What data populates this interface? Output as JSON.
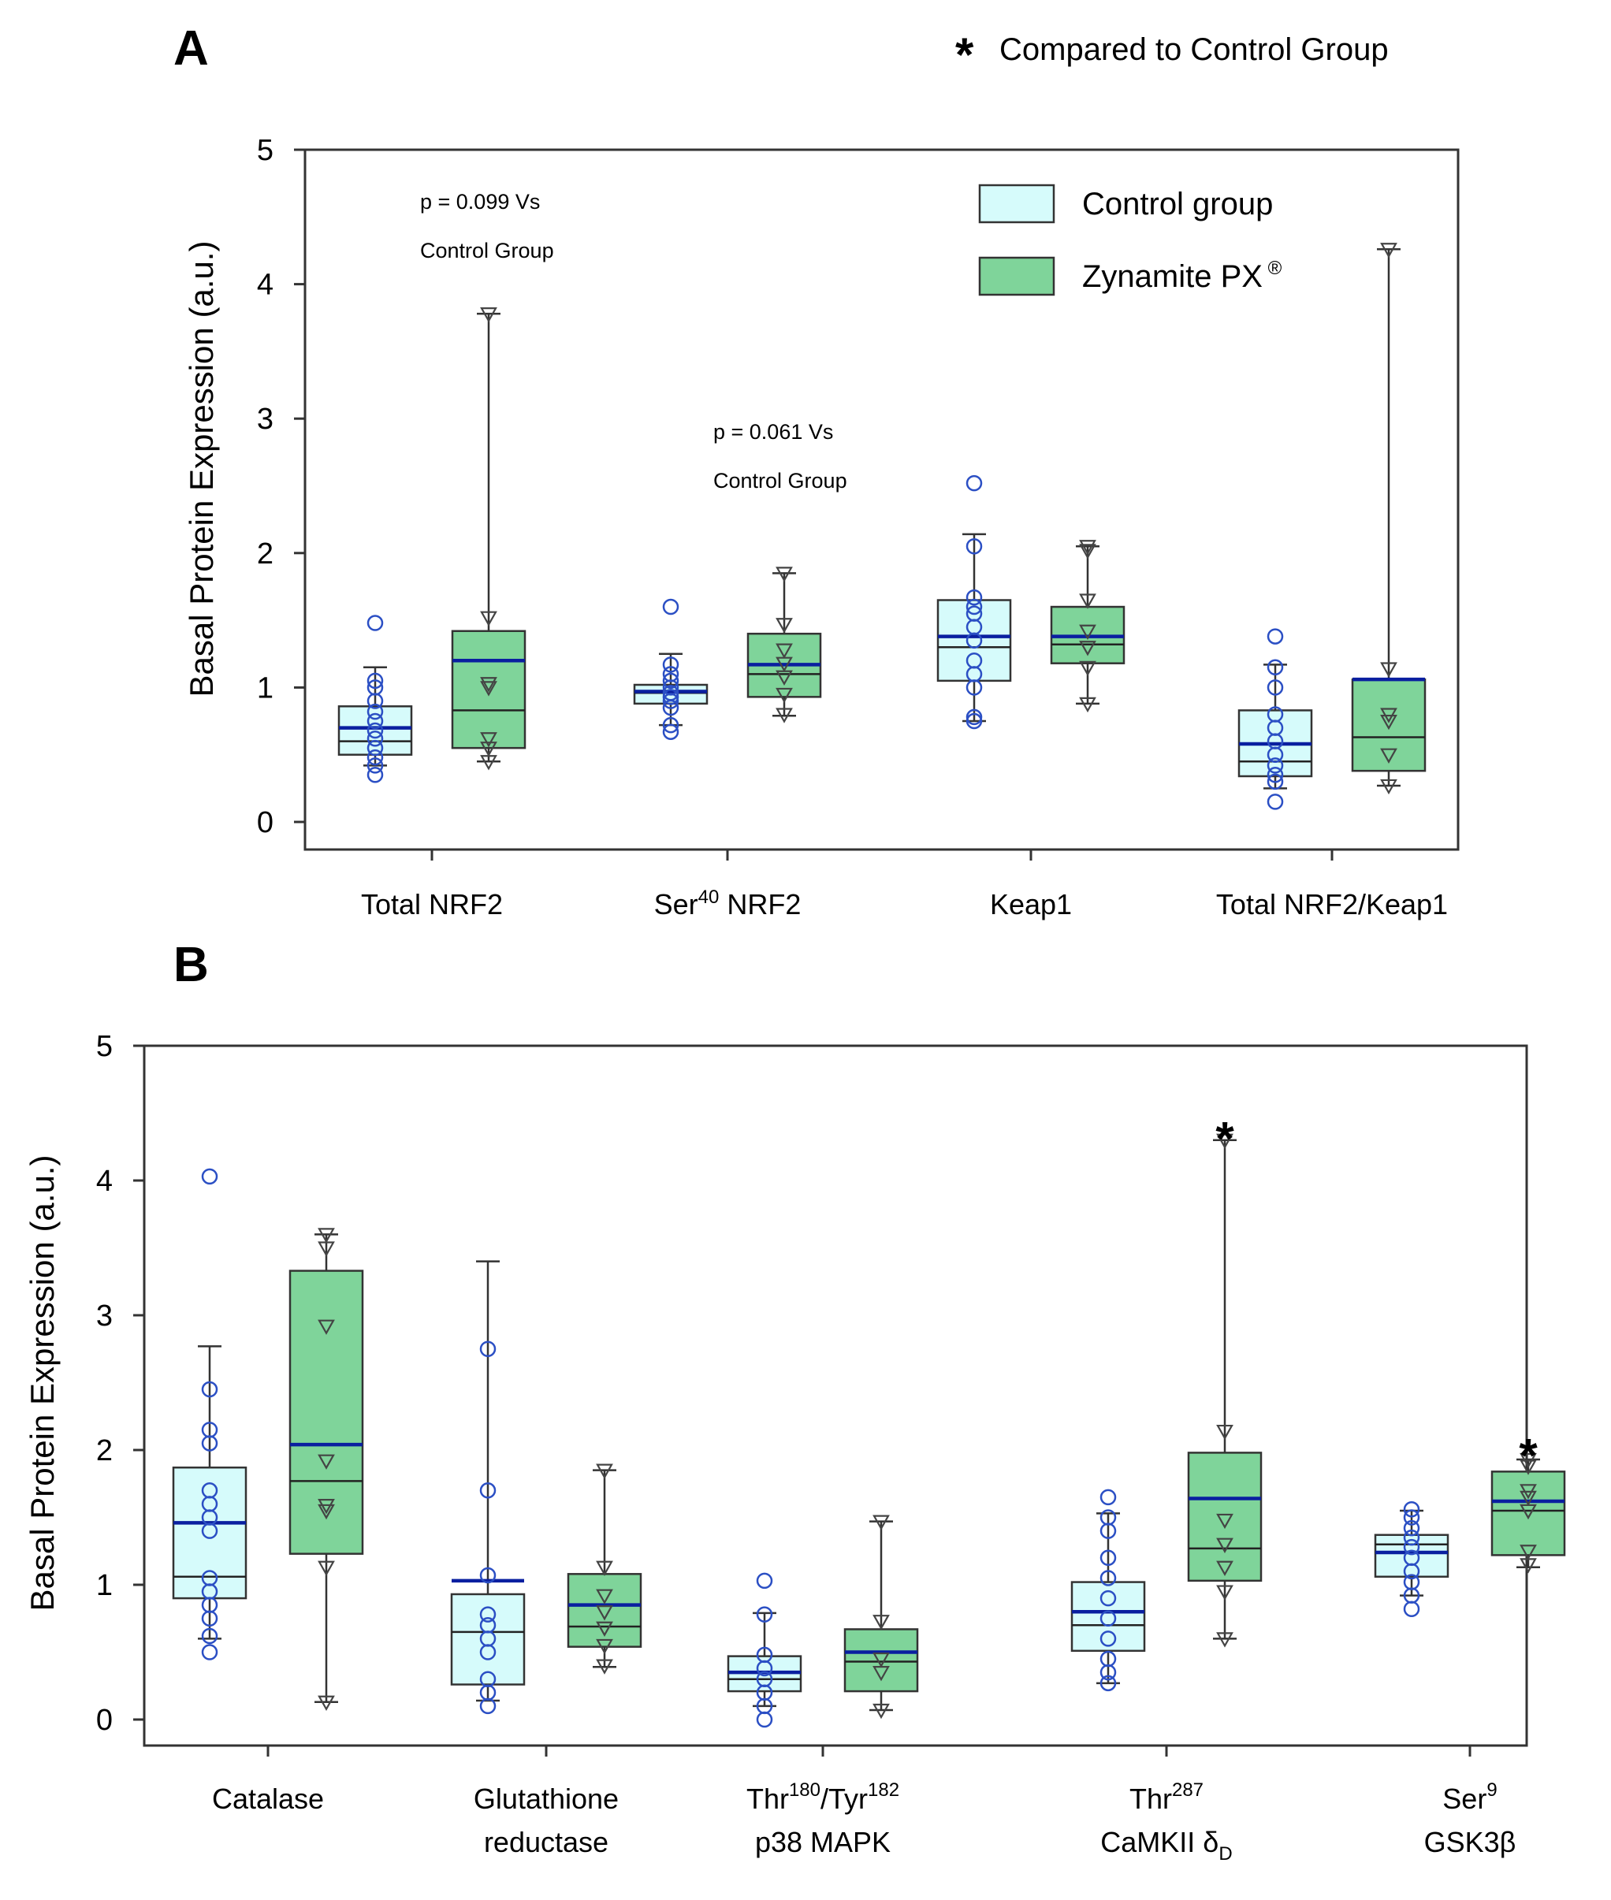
{
  "header": {
    "star": "*",
    "note": "Compared to Control Group"
  },
  "legend": [
    {
      "label": "Control group",
      "color": "#d6fbfb"
    },
    {
      "label": "Zynamite PX",
      "sup": "®",
      "color": "#7fd49a"
    }
  ],
  "colors": {
    "mean": "#0a1fa0",
    "point": "#2b4fc4",
    "control_fill": "#d6fbfb",
    "treat_fill": "#7fd49a",
    "stroke": "#333333"
  },
  "chart_data": [
    {
      "panel": "A",
      "type": "box",
      "ylabel": "Basal Protein Expression (a.u.)",
      "ylim": [
        0,
        5
      ],
      "yticks": [
        "0",
        "1",
        "2",
        "3",
        "4",
        "5"
      ],
      "categories": [
        {
          "main": "Total NRF2"
        },
        {
          "main": "Ser",
          "sup": "40",
          "after": " NRF2"
        },
        {
          "main": "Keap1"
        },
        {
          "main": "Total NRF2/Keap1"
        }
      ],
      "series": [
        {
          "name": "Control group",
          "boxes": [
            {
              "q1": 0.5,
              "median": 0.6,
              "q3": 0.86,
              "mean": 0.7,
              "whisker_low": 0.42,
              "whisker_high": 1.15,
              "points": [
                0.35,
                0.42,
                0.48,
                0.55,
                0.62,
                0.68,
                0.75,
                0.82,
                0.9,
                1.0,
                1.05,
                1.48
              ]
            },
            {
              "q1": 0.88,
              "median": 0.96,
              "q3": 1.02,
              "mean": 0.97,
              "whisker_low": 0.72,
              "whisker_high": 1.25,
              "points": [
                0.67,
                0.72,
                0.85,
                0.9,
                0.93,
                0.96,
                1.0,
                1.05,
                1.1,
                1.17,
                1.6
              ]
            },
            {
              "q1": 1.05,
              "median": 1.3,
              "q3": 1.65,
              "mean": 1.38,
              "whisker_low": 0.75,
              "whisker_high": 2.14,
              "points": [
                0.75,
                0.78,
                1.0,
                1.1,
                1.2,
                1.35,
                1.45,
                1.55,
                1.6,
                1.67,
                2.05,
                2.52
              ]
            },
            {
              "q1": 0.34,
              "median": 0.45,
              "q3": 0.83,
              "mean": 0.58,
              "whisker_low": 0.25,
              "whisker_high": 1.17,
              "points": [
                0.15,
                0.3,
                0.35,
                0.42,
                0.5,
                0.6,
                0.7,
                0.8,
                1.0,
                1.15,
                1.38
              ]
            }
          ]
        },
        {
          "name": "Zynamite PX",
          "boxes": [
            {
              "q1": 0.55,
              "median": 0.83,
              "q3": 1.42,
              "mean": 1.2,
              "whisker_low": 0.45,
              "whisker_high": 3.78,
              "points": [
                0.45,
                0.55,
                0.62,
                1.0,
                1.03,
                1.52,
                3.78
              ]
            },
            {
              "q1": 0.93,
              "median": 1.1,
              "q3": 1.4,
              "mean": 1.17,
              "whisker_low": 0.79,
              "whisker_high": 1.85,
              "points": [
                0.8,
                0.95,
                1.08,
                1.18,
                1.28,
                1.47,
                1.85
              ]
            },
            {
              "q1": 1.18,
              "median": 1.32,
              "q3": 1.6,
              "mean": 1.38,
              "whisker_low": 0.88,
              "whisker_high": 2.05,
              "points": [
                0.88,
                1.15,
                1.3,
                1.42,
                1.65,
                2.02,
                2.05
              ]
            },
            {
              "q1": 0.38,
              "median": 0.63,
              "q3": 1.06,
              "mean": 1.06,
              "whisker_low": 0.27,
              "whisker_high": 4.26,
              "points": [
                0.27,
                0.5,
                0.75,
                0.8,
                1.14,
                4.26
              ]
            }
          ]
        }
      ],
      "annotations": [
        {
          "lines": [
            "p = 0.099 Vs",
            "Control Group"
          ],
          "category": 0
        },
        {
          "lines": [
            "p = 0.061 Vs",
            "Control Group"
          ],
          "category": 1
        }
      ]
    },
    {
      "panel": "B",
      "type": "box",
      "ylabel": "Basal Protein Expression (a.u.)",
      "ylim": [
        0,
        5
      ],
      "yticks": [
        "0",
        "1",
        "2",
        "3",
        "4",
        "5"
      ],
      "categories": [
        {
          "line1": "Catalase"
        },
        {
          "line1": "Glutathione",
          "line2": "reductase"
        },
        {
          "line1": "Thr/Tyr",
          "sup1": "180",
          "sup2": "182",
          "line2": "p38 MAPK"
        },
        {
          "line1": "Thr",
          "sup1": "287",
          "line2": "CaMKII δ",
          "sub2": "D"
        },
        {
          "line1": "Ser",
          "sup1": "9",
          "line2": "GSK3β"
        }
      ],
      "series": [
        {
          "name": "Control group",
          "boxes": [
            {
              "q1": 0.9,
              "median": 1.06,
              "q3": 1.87,
              "mean": 1.46,
              "whisker_low": 0.6,
              "whisker_high": 2.77,
              "points": [
                0.5,
                0.62,
                0.75,
                0.85,
                0.95,
                1.05,
                1.4,
                1.5,
                1.6,
                1.7,
                2.05,
                2.15,
                2.45,
                4.03
              ]
            },
            {
              "q1": 0.26,
              "median": 0.65,
              "q3": 0.93,
              "mean": 1.03,
              "whisker_low": 0.14,
              "whisker_high": 3.4,
              "points": [
                0.1,
                0.2,
                0.3,
                0.5,
                0.6,
                0.7,
                0.78,
                1.07,
                1.7,
                2.75
              ]
            },
            {
              "q1": 0.21,
              "median": 0.3,
              "q3": 0.47,
              "mean": 0.35,
              "whisker_low": 0.1,
              "whisker_high": 0.79,
              "points": [
                0.0,
                0.1,
                0.2,
                0.3,
                0.38,
                0.48,
                0.78,
                1.03
              ]
            },
            {
              "q1": 0.51,
              "median": 0.7,
              "q3": 1.02,
              "mean": 0.8,
              "whisker_low": 0.27,
              "whisker_high": 1.53,
              "points": [
                0.27,
                0.35,
                0.45,
                0.6,
                0.75,
                0.9,
                1.05,
                1.2,
                1.4,
                1.5,
                1.65
              ]
            },
            {
              "q1": 1.06,
              "median": 1.3,
              "q3": 1.37,
              "mean": 1.24,
              "whisker_low": 0.92,
              "whisker_high": 1.55,
              "points": [
                0.82,
                0.92,
                1.02,
                1.1,
                1.2,
                1.28,
                1.35,
                1.42,
                1.5,
                1.56
              ]
            }
          ]
        },
        {
          "name": "Zynamite PX",
          "boxes": [
            {
              "q1": 1.23,
              "median": 1.77,
              "q3": 3.33,
              "mean": 2.04,
              "whisker_low": 0.13,
              "whisker_high": 3.6,
              "points": [
                0.13,
                1.13,
                1.55,
                1.59,
                1.92,
                2.92,
                3.5,
                3.6
              ]
            },
            {
              "q1": 0.54,
              "median": 0.69,
              "q3": 1.08,
              "mean": 0.85,
              "whisker_low": 0.39,
              "whisker_high": 1.85,
              "points": [
                0.4,
                0.55,
                0.68,
                0.8,
                0.92,
                1.13,
                1.85
              ]
            },
            {
              "q1": 0.21,
              "median": 0.43,
              "q3": 0.67,
              "mean": 0.5,
              "whisker_low": 0.07,
              "whisker_high": 1.47,
              "points": [
                0.07,
                0.35,
                0.45,
                0.73,
                1.47
              ]
            },
            {
              "q1": 1.03,
              "median": 1.27,
              "q3": 1.98,
              "mean": 1.64,
              "whisker_low": 0.6,
              "whisker_high": 4.3,
              "points": [
                0.6,
                0.95,
                1.13,
                1.3,
                1.48,
                2.14,
                4.3
              ]
            },
            {
              "q1": 1.22,
              "median": 1.55,
              "q3": 1.84,
              "mean": 1.62,
              "whisker_low": 1.13,
              "whisker_high": 1.93,
              "points": [
                1.15,
                1.25,
                1.55,
                1.65,
                1.7,
                1.88,
                1.93
              ]
            }
          ]
        }
      ],
      "annotations": [
        {
          "star": "*",
          "category": 3,
          "series": 1,
          "y": 4.4
        },
        {
          "star": "*",
          "category": 4,
          "series": 1,
          "y": 2.05
        }
      ]
    }
  ]
}
